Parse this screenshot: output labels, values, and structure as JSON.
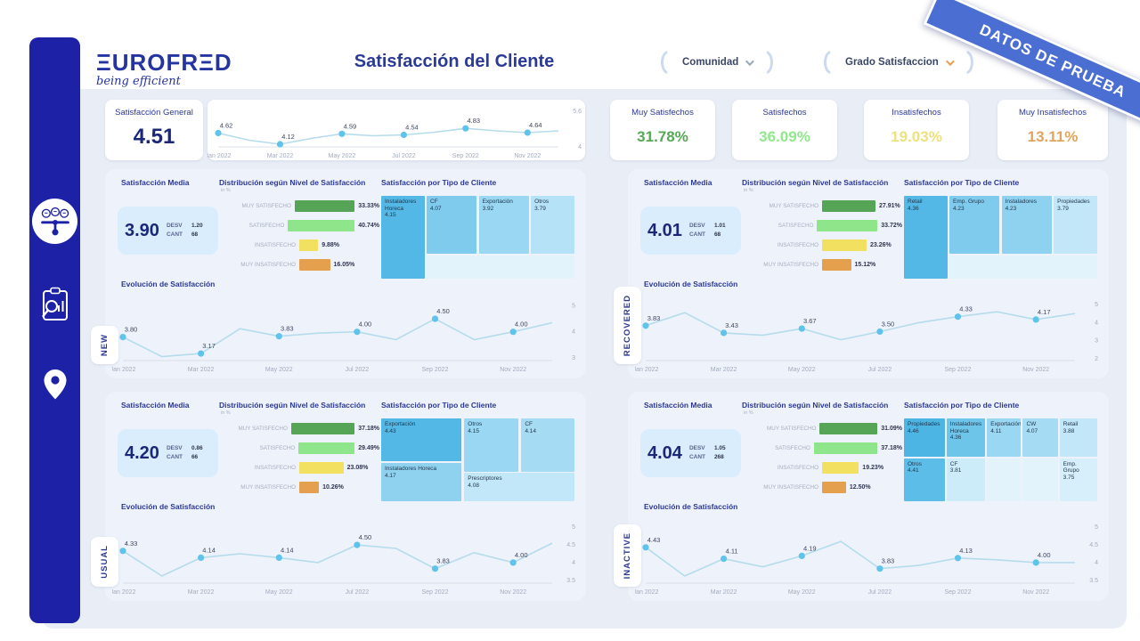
{
  "banner": {
    "text": "DATOS DE PRUEBA",
    "color": "#4a6ed2"
  },
  "header": {
    "logo_text": "ΞUROFRΞD",
    "logo_tagline": "being efficient",
    "title": "Satisfacción del Cliente",
    "filters": [
      {
        "label": "Comunidad",
        "chevron": "gray"
      },
      {
        "label": "Grado Satisfaccion",
        "chevron": "orange"
      },
      {
        "label": "",
        "chevron": "orange"
      }
    ]
  },
  "labels": {
    "media_title": "Satisfacción Media",
    "dist_title": "Distribución según Nivel de Satisfacción",
    "dist_subtitle": "in %",
    "treemap_title": "Satisfacción por Tipo de Cliente",
    "evolution_title": "Evolución de Satisfacción",
    "desv": "DESV",
    "cant": "CANT"
  },
  "summary": {
    "general_title": "Satisfacción General",
    "general_value": "4.51",
    "trend": {
      "type": "line",
      "x_labels": [
        "Jan 2022",
        "Mar 2022",
        "May 2022",
        "Jul 2022",
        "Sep 2022",
        "Nov 2022"
      ],
      "values": [
        4.62,
        4.3,
        4.12,
        4.38,
        4.59,
        4.5,
        4.54,
        4.66,
        4.83,
        4.72,
        4.64,
        4.72
      ],
      "point_labels": [
        "4.62",
        "4.12",
        "4.59",
        "4.54",
        "4.83",
        "4.64"
      ],
      "y_ticks": [
        {
          "v": 5.6,
          "label": "5.6"
        },
        {
          "v": 4.0,
          "label": "4"
        }
      ],
      "y_min": 4.0,
      "y_max": 5.6
    },
    "kpis": [
      {
        "label": "Muy Satisfechos",
        "value": "31.78%",
        "color": "#55a855"
      },
      {
        "label": "Satisfechos",
        "value": "36.09%",
        "color": "#90e88c"
      },
      {
        "label": "Insatisfechos",
        "value": "19.03%",
        "color": "#eee07e"
      },
      {
        "label": "Muy Insatisfechos",
        "value": "13.11%",
        "color": "#e2a45c"
      }
    ]
  },
  "segments": [
    {
      "tab": "NEW",
      "media_value": "3.90",
      "desv": "1.20",
      "cant": "68",
      "dist": [
        {
          "label": "MUY SATISFECHO",
          "pct": "33.33%",
          "value": 33.33,
          "color": "#56a556"
        },
        {
          "label": "SATISFECHO",
          "pct": "40.74%",
          "value": 40.74,
          "color": "#8fe58a"
        },
        {
          "label": "INSATISFECHO",
          "pct": "9.88%",
          "value": 9.88,
          "color": "#f2e060"
        },
        {
          "label": "MUY INSATISFECHO",
          "pct": "16.05%",
          "value": 16.05,
          "color": "#e5a04e"
        }
      ],
      "treemap": [
        {
          "name": "Instaladores Horeca",
          "value": "4.15",
          "color": "#53b8e6"
        },
        {
          "name": "CF",
          "value": "4.07",
          "color": "#7ecbee"
        },
        {
          "name": "Exportación",
          "value": "3.92",
          "color": "#99d7f2"
        },
        {
          "name": "Otros",
          "value": "3.79",
          "color": "#b5e2f7"
        }
      ],
      "evolution": {
        "type": "line",
        "x_labels": [
          "Jan 2022",
          "Mar 2022",
          "May 2022",
          "Jul 2022",
          "Sep 2022",
          "Nov 2022"
        ],
        "values": [
          3.8,
          3.05,
          3.17,
          4.12,
          3.83,
          3.95,
          4.0,
          3.7,
          4.5,
          3.7,
          4.0,
          4.35
        ],
        "point_labels": [
          "3.80",
          "3.17",
          "3.83",
          "4.00",
          "4.50",
          "4.00"
        ],
        "y_ticks": [
          {
            "v": 5,
            "label": "5"
          },
          {
            "v": 4,
            "label": "4"
          },
          {
            "v": 3,
            "label": "3"
          }
        ],
        "y_min": 2.9,
        "y_max": 5.15
      }
    },
    {
      "tab": "RECOVERED",
      "media_value": "4.01",
      "desv": "1.01",
      "cant": "68",
      "dist": [
        {
          "label": "MUY SATISFECHO",
          "pct": "27.91%",
          "value": 27.91,
          "color": "#56a556"
        },
        {
          "label": "SATISFECHO",
          "pct": "33.72%",
          "value": 33.72,
          "color": "#8fe58a"
        },
        {
          "label": "INSATISFECHO",
          "pct": "23.26%",
          "value": 23.26,
          "color": "#f2e060"
        },
        {
          "label": "MUY INSATISFECHO",
          "pct": "15.12%",
          "value": 15.12,
          "color": "#e5a04e"
        }
      ],
      "treemap": [
        {
          "name": "Retail",
          "value": "4.36",
          "color": "#53b8e6"
        },
        {
          "name": "Emp. Grupo",
          "value": "4.23",
          "color": "#7ecbee"
        },
        {
          "name": "Instaladores",
          "value": "4.23",
          "color": "#8ed2f0"
        },
        {
          "name": "Propiedades",
          "value": "3.79",
          "color": "#c2e7f8"
        }
      ],
      "evolution": {
        "type": "line",
        "x_labels": [
          "Jan 2022",
          "Mar 2022",
          "May 2022",
          "Jul 2022",
          "Sep 2022",
          "Nov 2022"
        ],
        "values": [
          3.83,
          4.55,
          3.43,
          3.3,
          3.67,
          3.05,
          3.5,
          4.0,
          4.33,
          4.6,
          4.17,
          4.5
        ],
        "point_labels": [
          "3.83",
          "3.43",
          "3.67",
          "3.50",
          "4.33",
          "4.17"
        ],
        "y_ticks": [
          {
            "v": 5,
            "label": "5"
          },
          {
            "v": 4,
            "label": "4"
          },
          {
            "v": 3,
            "label": "3"
          },
          {
            "v": 2,
            "label": "2"
          }
        ],
        "y_min": 1.9,
        "y_max": 5.15
      }
    },
    {
      "tab": "USUAL",
      "media_value": "4.20",
      "desv": "0.86",
      "cant": "66",
      "dist": [
        {
          "label": "MUY SATISFECHO",
          "pct": "37.18%",
          "value": 37.18,
          "color": "#56a556"
        },
        {
          "label": "SATISFECHO",
          "pct": "29.49%",
          "value": 29.49,
          "color": "#8fe58a"
        },
        {
          "label": "INSATISFECHO",
          "pct": "23.08%",
          "value": 23.08,
          "color": "#f2e060"
        },
        {
          "label": "MUY INSATISFECHO",
          "pct": "10.26%",
          "value": 10.26,
          "color": "#e5a04e"
        }
      ],
      "treemap": [
        {
          "name": "Exportación",
          "value": "4.43",
          "color": "#53b8e6"
        },
        {
          "name": "Instaladores Horeca",
          "value": "4.17",
          "color": "#8ed2f0"
        },
        {
          "name": "Otros",
          "value": "4.15",
          "color": "#99d7f2"
        },
        {
          "name": "CF",
          "value": "4.14",
          "color": "#a5dcf4"
        },
        {
          "name": "Prescriptores",
          "value": "4.08",
          "color": "#c2e7f8"
        }
      ],
      "evolution": {
        "type": "line",
        "x_labels": [
          "Jan 2022",
          "Mar 2022",
          "May 2022",
          "Jul 2022",
          "Sep 2022",
          "Nov 2022"
        ],
        "values": [
          4.33,
          3.62,
          4.14,
          4.25,
          4.14,
          4.0,
          4.5,
          4.4,
          3.83,
          4.28,
          4.0,
          4.55
        ],
        "point_labels": [
          "4.33",
          "4.14",
          "4.14",
          "4.50",
          "3.83",
          "4.00"
        ],
        "y_ticks": [
          {
            "v": 5,
            "label": "5"
          },
          {
            "v": 4.5,
            "label": "4.5"
          },
          {
            "v": 4,
            "label": "4"
          },
          {
            "v": 3.5,
            "label": "3.5"
          }
        ],
        "y_min": 3.42,
        "y_max": 5.08
      }
    },
    {
      "tab": "INACTIVE",
      "media_value": "4.04",
      "desv": "1.05",
      "cant": "268",
      "dist": [
        {
          "label": "MUY SATISFECHO",
          "pct": "31.09%",
          "value": 31.09,
          "color": "#56a556"
        },
        {
          "label": "SATISFECHO",
          "pct": "37.18%",
          "value": 37.18,
          "color": "#8fe58a"
        },
        {
          "label": "INSATISFECHO",
          "pct": "19.23%",
          "value": 19.23,
          "color": "#f2e060"
        },
        {
          "label": "MUY INSATISFECHO",
          "pct": "12.50%",
          "value": 12.5,
          "color": "#e5a04e"
        }
      ],
      "treemap": [
        {
          "name": "Propiedades",
          "value": "4.46",
          "color": "#4db5e4"
        },
        {
          "name": "Instaladores Horeca",
          "value": "4.36",
          "color": "#6ec5ea"
        },
        {
          "name": "Exportación",
          "value": "4.11",
          "color": "#99d7f2"
        },
        {
          "name": "CW",
          "value": "4.07",
          "color": "#a5dcf4"
        },
        {
          "name": "Retail",
          "value": "3.88",
          "color": "#c2e7f8"
        },
        {
          "name": "Otros",
          "value": "4.41",
          "color": "#5cbee8"
        },
        {
          "name": "CF",
          "value": "3.81",
          "color": "#cdecfa"
        },
        {
          "name": "Emp. Grupo",
          "value": "3.75",
          "color": "#d6effb"
        }
      ],
      "evolution": {
        "type": "line",
        "x_labels": [
          "Jan 2022",
          "Mar 2022",
          "May 2022",
          "Jul 2022",
          "Sep 2022",
          "Nov 2022"
        ],
        "values": [
          4.43,
          3.62,
          4.11,
          3.88,
          4.19,
          4.6,
          3.83,
          3.92,
          4.13,
          4.08,
          4.0,
          4.0
        ],
        "point_labels": [
          "4.43",
          "4.11",
          "4.19",
          "3.83",
          "4.13",
          "4.00"
        ],
        "y_ticks": [
          {
            "v": 5,
            "label": "5"
          },
          {
            "v": 4.5,
            "label": "4.5"
          },
          {
            "v": 4,
            "label": "4"
          },
          {
            "v": 3.5,
            "label": "3.5"
          }
        ],
        "y_min": 3.42,
        "y_max": 5.08
      }
    }
  ],
  "sidebar": {
    "icons": [
      "satisfaction-slider",
      "report-search",
      "location-pin"
    ]
  }
}
